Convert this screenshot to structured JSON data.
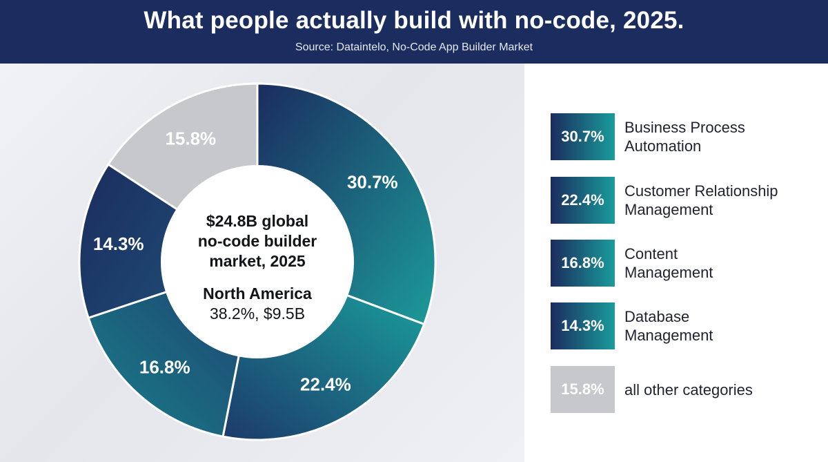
{
  "header": {
    "title": "What people actually build with no-code, 2025.",
    "source": "Source: Dataintelo, No-Code App Builder Market"
  },
  "center": {
    "line1": "$24.8B global",
    "line2": "no-code builder",
    "line3": "market, 2025",
    "region": "North America",
    "region_value": "38.2%, $9.5B"
  },
  "colors": {
    "navy": "#1b2c5e",
    "teal": "#19a3a0",
    "gray": "#c6c8cc"
  },
  "legend": [
    {
      "value": "30.7%",
      "lines": [
        "Business Process",
        "Automation"
      ]
    },
    {
      "value": "22.4%",
      "lines": [
        "Customer Relationship",
        "Management"
      ]
    },
    {
      "value": "16.8%",
      "lines": [
        "Content",
        "Management"
      ]
    },
    {
      "value": "14.3%",
      "lines": [
        "Database",
        "Management"
      ]
    },
    {
      "value": "15.8%",
      "lines": [
        "all other categories"
      ]
    }
  ],
  "chart_data": {
    "type": "pie",
    "variant": "donut",
    "title": "What people actually build with no-code, 2025.",
    "categories": [
      "Business Process Automation",
      "Customer Relationship Management",
      "Content Management",
      "Database Management",
      "all other categories"
    ],
    "values": [
      30.7,
      22.4,
      16.8,
      14.3,
      15.8
    ],
    "labels": [
      "30.7%",
      "22.4%",
      "16.8%",
      "14.3%",
      "15.8%"
    ],
    "legend_position": "right"
  }
}
